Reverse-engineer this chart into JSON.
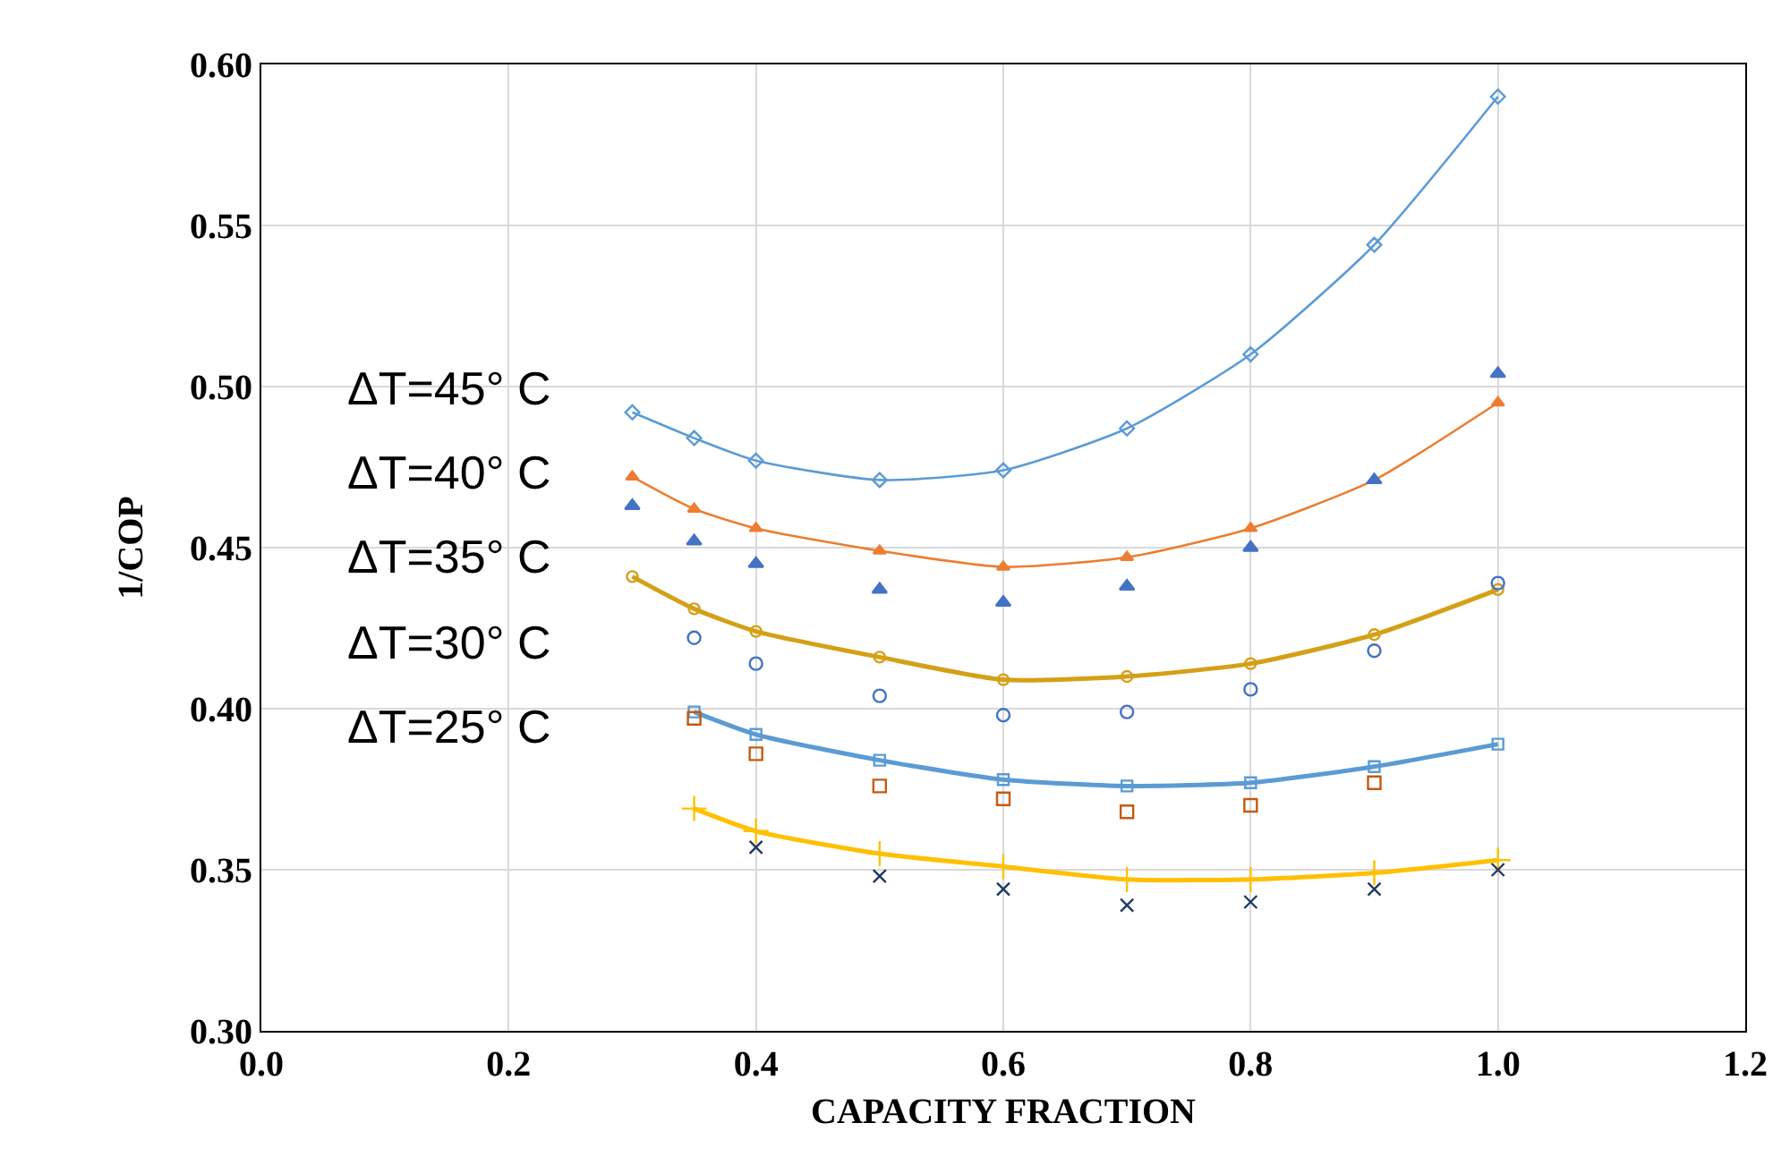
{
  "chart_data": {
    "type": "line",
    "xlabel": "CAPACITY FRACTION",
    "ylabel": "1/COP",
    "xlim": [
      0.0,
      1.2
    ],
    "xticks": [
      {
        "value": 0,
        "label": "0.0"
      },
      {
        "value": 0.2,
        "label": "0.2"
      },
      {
        "value": 0.4,
        "label": "0.4"
      },
      {
        "value": 0.6,
        "label": "0.6"
      },
      {
        "value": 0.8,
        "label": "0.8"
      },
      {
        "value": 1.0,
        "label": "1.0"
      },
      {
        "value": 1.2,
        "label": "1.2"
      }
    ],
    "ylim": [
      0.3,
      0.6
    ],
    "yticks": [
      {
        "value": 0.3,
        "label": "0.30"
      },
      {
        "value": 0.35,
        "label": "0.35"
      },
      {
        "value": 0.4,
        "label": "0.40"
      },
      {
        "value": 0.45,
        "label": "0.45"
      },
      {
        "value": 0.5,
        "label": "0.50"
      },
      {
        "value": 0.55,
        "label": "0.55"
      },
      {
        "value": 0.6,
        "label": "0.60"
      }
    ],
    "grid": true,
    "annotations": [
      "ΔT=45° C",
      "ΔT=40° C",
      "ΔT=35° C",
      "ΔT=30° C",
      "ΔT=25° C"
    ],
    "series": [
      {
        "color": "#5b9bd5",
        "marker": "diamond",
        "x": [
          0.3,
          0.35,
          0.4,
          0.5,
          0.6,
          0.7,
          0.8,
          0.9,
          1.0
        ],
        "values": [
          0.492,
          0.484,
          0.477,
          0.471,
          0.474,
          0.487,
          0.51,
          0.544,
          0.59
        ]
      },
      {
        "color": "#ed7d31",
        "marker": "triangle",
        "x": [
          0.3,
          0.35,
          0.4,
          0.5,
          0.6,
          0.7,
          0.8,
          0.9,
          1.0
        ],
        "values": [
          0.472,
          0.462,
          0.456,
          0.449,
          0.444,
          0.447,
          0.456,
          0.471,
          0.495
        ]
      },
      {
        "type": "scatter",
        "color": "#4472c4",
        "marker": "triangle",
        "x": [
          0.3,
          0.35,
          0.4,
          0.5,
          0.6,
          0.7,
          0.8,
          0.9,
          1.0
        ],
        "values": [
          0.463,
          0.452,
          0.445,
          0.437,
          0.433,
          0.438,
          0.45,
          0.471,
          0.504
        ]
      },
      {
        "color": "#d4a017",
        "marker": "circle",
        "x": [
          0.3,
          0.35,
          0.4,
          0.5,
          0.6,
          0.7,
          0.8,
          0.9,
          1.0
        ],
        "values": [
          0.441,
          0.431,
          0.424,
          0.416,
          0.409,
          0.41,
          0.414,
          0.423,
          0.437
        ]
      },
      {
        "type": "scatter",
        "color": "#4472c4",
        "marker": "circle",
        "x": [
          0.35,
          0.4,
          0.5,
          0.6,
          0.7,
          0.8,
          0.9,
          1.0
        ],
        "values": [
          0.422,
          0.414,
          0.404,
          0.398,
          0.399,
          0.406,
          0.418,
          0.439
        ]
      },
      {
        "color": "#5b9bd5",
        "marker": "square",
        "x": [
          0.35,
          0.4,
          0.5,
          0.6,
          0.7,
          0.8,
          0.9,
          1.0
        ],
        "values": [
          0.399,
          0.392,
          0.384,
          0.378,
          0.376,
          0.377,
          0.382,
          0.389
        ]
      },
      {
        "type": "scatter",
        "color": "#c55a11",
        "marker": "square",
        "x": [
          0.35,
          0.4,
          0.5,
          0.6,
          0.7,
          0.8,
          0.9
        ],
        "values": [
          0.397,
          0.386,
          0.376,
          0.372,
          0.368,
          0.37,
          0.377
        ]
      },
      {
        "color": "#ffc000",
        "marker": "cross",
        "x": [
          0.35,
          0.4,
          0.5,
          0.6,
          0.7,
          0.8,
          0.9,
          1.0
        ],
        "values": [
          0.369,
          0.362,
          0.355,
          0.351,
          0.347,
          0.347,
          0.349,
          0.353
        ]
      },
      {
        "type": "scatter",
        "color": "#203864",
        "marker": "x",
        "x": [
          0.4,
          0.5,
          0.6,
          0.7,
          0.8,
          0.9,
          1.0
        ],
        "values": [
          0.357,
          0.348,
          0.344,
          0.339,
          0.34,
          0.344,
          0.35
        ]
      }
    ]
  }
}
